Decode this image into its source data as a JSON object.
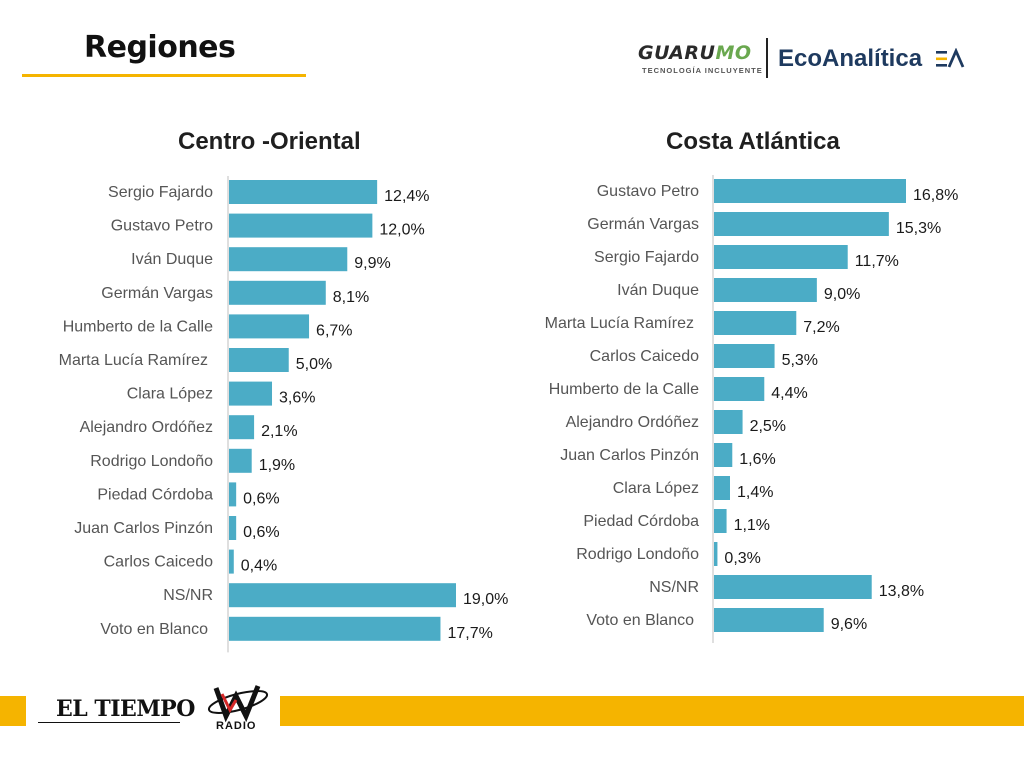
{
  "header": {
    "title": "Regiones",
    "logo_guarumo_main": "GUARU",
    "logo_guarumo_accent": "MO",
    "logo_guarumo_tagline": "TECNOLOGÍA INCLUYENTE",
    "logo_ecoanalitica": "EcoAnalítica",
    "logo_ea_mark": "EA"
  },
  "colors": {
    "bar": "#4bacc6",
    "accent": "#f5b400"
  },
  "chart_data": [
    {
      "type": "bar",
      "orientation": "horizontal",
      "title": "Centro -Oriental",
      "categories": [
        "Sergio Fajardo",
        "Gustavo Petro",
        "Iván Duque",
        "Germán Vargas",
        "Humberto de la Calle",
        "Marta Lucía Ramírez",
        "Clara López",
        "Alejandro Ordóñez",
        "Rodrigo Londoño",
        "Piedad Córdoba",
        "Juan Carlos Pinzón",
        "Carlos Caicedo",
        "NS/NR",
        "Voto en Blanco"
      ],
      "values": [
        12.4,
        12.0,
        9.9,
        8.1,
        6.7,
        5.0,
        3.6,
        2.1,
        1.9,
        0.6,
        0.6,
        0.4,
        19.0,
        17.7
      ],
      "value_labels": [
        "12,4%",
        "12,0%",
        "9,9%",
        "8,1%",
        "6,7%",
        "5,0%",
        "3,6%",
        "2,1%",
        "1,9%",
        "0,6%",
        "0,6%",
        "0,4%",
        "19,0%",
        "17,7%"
      ],
      "unit": "%",
      "xlim": [
        0,
        19.0
      ]
    },
    {
      "type": "bar",
      "orientation": "horizontal",
      "title": "Costa Atlántica",
      "categories": [
        "Gustavo Petro",
        "Germán Vargas",
        "Sergio Fajardo",
        "Iván Duque",
        "Marta Lucía Ramírez",
        "Carlos Caicedo",
        "Humberto de la Calle",
        "Alejandro Ordóñez",
        "Juan Carlos Pinzón",
        "Clara López",
        "Piedad Córdoba",
        "Rodrigo Londoño",
        "NS/NR",
        "Voto en Blanco"
      ],
      "values": [
        16.8,
        15.3,
        11.7,
        9.0,
        7.2,
        5.3,
        4.4,
        2.5,
        1.6,
        1.4,
        1.1,
        0.3,
        13.8,
        9.6
      ],
      "value_labels": [
        "16,8%",
        "15,3%",
        "11,7%",
        "9,0%",
        "7,2%",
        "5,3%",
        "4,4%",
        "2,5%",
        "1,6%",
        "1,4%",
        "1,1%",
        "0,3%",
        "13,8%",
        "9,6%"
      ],
      "unit": "%",
      "xlim": [
        0,
        16.8
      ]
    }
  ],
  "footer": {
    "logo_eltiempo": "EL TIEMPO",
    "logo_wradio_text": "RADIO"
  }
}
